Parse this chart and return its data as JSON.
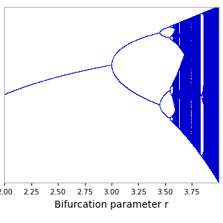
{
  "title": "",
  "xlabel": "Bifurcation parameter r",
  "ylabel": "",
  "r_min": 2.0,
  "r_max": 4.0,
  "x_min": 2.0,
  "x_max": 4.0,
  "y_min": 0.0,
  "y_max": 1.0,
  "xticks": [
    2.0,
    2.25,
    2.5,
    2.75,
    3.0,
    3.25,
    3.5,
    3.75
  ],
  "xtick_labels": [
    "2.00",
    "2.25",
    "2.50",
    "2.75",
    "3.00",
    "3.25",
    "3.50",
    "3.75"
  ],
  "plot_color": "#0000cc",
  "background_color": "#ffffff",
  "n_warmup": 1000,
  "n_plot": 1000,
  "n_r": 3000,
  "marker_alpha": 0.5,
  "xlabel_fontsize": 10,
  "tick_fontsize": 7.5
}
